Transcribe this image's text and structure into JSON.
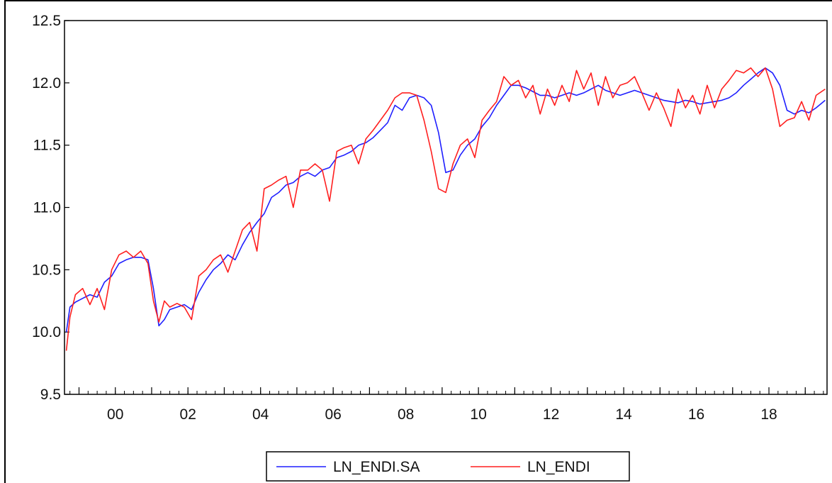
{
  "chart_data": {
    "type": "line",
    "title": "",
    "xlabel": "",
    "ylabel": "",
    "xlim": [
      1998.6,
      2019.6
    ],
    "ylim": [
      9.5,
      12.5
    ],
    "x_ticks": [
      {
        "value": 2000,
        "label": "00"
      },
      {
        "value": 2002,
        "label": "02"
      },
      {
        "value": 2004,
        "label": "04"
      },
      {
        "value": 2006,
        "label": "06"
      },
      {
        "value": 2008,
        "label": "08"
      },
      {
        "value": 2010,
        "label": "10"
      },
      {
        "value": 2012,
        "label": "12"
      },
      {
        "value": 2014,
        "label": "14"
      },
      {
        "value": 2016,
        "label": "16"
      },
      {
        "value": 2018,
        "label": "18"
      }
    ],
    "y_ticks": [
      {
        "value": 9.5,
        "label": "9.5"
      },
      {
        "value": 10.0,
        "label": "10.0"
      },
      {
        "value": 10.5,
        "label": "10.5"
      },
      {
        "value": 11.0,
        "label": "11.0"
      },
      {
        "value": 11.5,
        "label": "11.5"
      },
      {
        "value": 12.0,
        "label": "12.0"
      },
      {
        "value": 12.5,
        "label": "12.5"
      }
    ],
    "grid": false,
    "legend_position": "bottom",
    "series": [
      {
        "name": "LN_ENDI.SA",
        "color": "#1f1fff",
        "x": [
          1998.65,
          1998.75,
          1998.9,
          1999.1,
          1999.3,
          1999.5,
          1999.7,
          1999.9,
          2000.1,
          2000.3,
          2000.5,
          2000.7,
          2000.9,
          2001.05,
          2001.2,
          2001.35,
          2001.5,
          2001.7,
          2001.9,
          2002.1,
          2002.3,
          2002.5,
          2002.7,
          2002.9,
          2003.1,
          2003.3,
          2003.5,
          2003.7,
          2003.9,
          2004.1,
          2004.3,
          2004.5,
          2004.7,
          2004.9,
          2005.1,
          2005.3,
          2005.5,
          2005.7,
          2005.9,
          2006.1,
          2006.3,
          2006.5,
          2006.7,
          2006.9,
          2007.1,
          2007.3,
          2007.5,
          2007.7,
          2007.9,
          2008.1,
          2008.3,
          2008.5,
          2008.7,
          2008.9,
          2009.1,
          2009.3,
          2009.5,
          2009.7,
          2009.9,
          2010.1,
          2010.3,
          2010.5,
          2010.7,
          2010.9,
          2011.1,
          2011.3,
          2011.5,
          2011.7,
          2011.9,
          2012.1,
          2012.3,
          2012.5,
          2012.7,
          2012.9,
          2013.1,
          2013.3,
          2013.5,
          2013.7,
          2013.9,
          2014.1,
          2014.3,
          2014.5,
          2014.7,
          2014.9,
          2015.1,
          2015.3,
          2015.5,
          2015.7,
          2015.9,
          2016.1,
          2016.3,
          2016.5,
          2016.7,
          2016.9,
          2017.1,
          2017.3,
          2017.5,
          2017.7,
          2017.9,
          2018.1,
          2018.3,
          2018.5,
          2018.7,
          2018.9,
          2019.1,
          2019.3,
          2019.55
        ],
        "values": [
          10.0,
          10.2,
          10.24,
          10.27,
          10.3,
          10.28,
          10.4,
          10.45,
          10.55,
          10.58,
          10.6,
          10.6,
          10.58,
          10.35,
          10.05,
          10.1,
          10.18,
          10.2,
          10.22,
          10.18,
          10.32,
          10.42,
          10.5,
          10.55,
          10.62,
          10.58,
          10.7,
          10.8,
          10.88,
          10.95,
          11.08,
          11.12,
          11.18,
          11.2,
          11.25,
          11.28,
          11.25,
          11.3,
          11.32,
          11.4,
          11.42,
          11.45,
          11.5,
          11.52,
          11.56,
          11.62,
          11.68,
          11.82,
          11.78,
          11.88,
          11.9,
          11.88,
          11.82,
          11.6,
          11.28,
          11.3,
          11.42,
          11.5,
          11.55,
          11.65,
          11.72,
          11.82,
          11.9,
          11.98,
          11.98,
          11.96,
          11.93,
          11.9,
          11.9,
          11.88,
          11.9,
          11.92,
          11.9,
          11.92,
          11.95,
          11.98,
          11.94,
          11.92,
          11.9,
          11.92,
          11.94,
          11.92,
          11.9,
          11.88,
          11.86,
          11.85,
          11.84,
          11.86,
          11.85,
          11.83,
          11.84,
          11.85,
          11.86,
          11.88,
          11.92,
          11.98,
          12.03,
          12.08,
          12.12,
          12.08,
          11.98,
          11.78,
          11.75,
          11.78,
          11.76,
          11.8,
          11.86
        ]
      },
      {
        "name": "LN_ENDI",
        "color": "#ff1f1f",
        "x": [
          1998.65,
          1998.75,
          1998.9,
          1999.1,
          1999.3,
          1999.5,
          1999.7,
          1999.9,
          2000.1,
          2000.3,
          2000.5,
          2000.7,
          2000.9,
          2001.05,
          2001.2,
          2001.35,
          2001.5,
          2001.7,
          2001.9,
          2002.1,
          2002.3,
          2002.5,
          2002.7,
          2002.9,
          2003.1,
          2003.3,
          2003.5,
          2003.7,
          2003.9,
          2004.1,
          2004.3,
          2004.5,
          2004.7,
          2004.9,
          2005.1,
          2005.3,
          2005.5,
          2005.7,
          2005.9,
          2006.1,
          2006.3,
          2006.5,
          2006.7,
          2006.9,
          2007.1,
          2007.3,
          2007.5,
          2007.7,
          2007.9,
          2008.1,
          2008.3,
          2008.5,
          2008.7,
          2008.9,
          2009.1,
          2009.3,
          2009.5,
          2009.7,
          2009.9,
          2010.1,
          2010.3,
          2010.5,
          2010.7,
          2010.9,
          2011.1,
          2011.3,
          2011.5,
          2011.7,
          2011.9,
          2012.1,
          2012.3,
          2012.5,
          2012.7,
          2012.9,
          2013.1,
          2013.3,
          2013.5,
          2013.7,
          2013.9,
          2014.1,
          2014.3,
          2014.5,
          2014.7,
          2014.9,
          2015.1,
          2015.3,
          2015.5,
          2015.7,
          2015.9,
          2016.1,
          2016.3,
          2016.5,
          2016.7,
          2016.9,
          2017.1,
          2017.3,
          2017.5,
          2017.7,
          2017.9,
          2018.1,
          2018.3,
          2018.5,
          2018.7,
          2018.9,
          2019.1,
          2019.3,
          2019.55
        ],
        "values": [
          9.85,
          10.12,
          10.3,
          10.35,
          10.22,
          10.35,
          10.18,
          10.5,
          10.62,
          10.65,
          10.6,
          10.65,
          10.55,
          10.25,
          10.08,
          10.25,
          10.2,
          10.23,
          10.2,
          10.1,
          10.45,
          10.5,
          10.58,
          10.62,
          10.48,
          10.65,
          10.82,
          10.88,
          10.65,
          11.15,
          11.18,
          11.22,
          11.25,
          11.0,
          11.3,
          11.3,
          11.35,
          11.3,
          11.05,
          11.45,
          11.48,
          11.5,
          11.35,
          11.55,
          11.62,
          11.7,
          11.78,
          11.88,
          11.92,
          11.92,
          11.9,
          11.7,
          11.45,
          11.15,
          11.12,
          11.35,
          11.5,
          11.55,
          11.4,
          11.7,
          11.78,
          11.85,
          12.05,
          11.98,
          12.02,
          11.88,
          11.98,
          11.75,
          11.95,
          11.82,
          11.98,
          11.85,
          12.1,
          11.95,
          12.08,
          11.82,
          12.05,
          11.88,
          11.98,
          12.0,
          12.05,
          11.92,
          11.78,
          11.92,
          11.8,
          11.65,
          11.95,
          11.8,
          11.9,
          11.75,
          11.98,
          11.8,
          11.95,
          12.02,
          12.1,
          12.08,
          12.12,
          12.05,
          12.12,
          11.95,
          11.65,
          11.7,
          11.72,
          11.85,
          11.7,
          11.9,
          11.95
        ]
      }
    ]
  }
}
